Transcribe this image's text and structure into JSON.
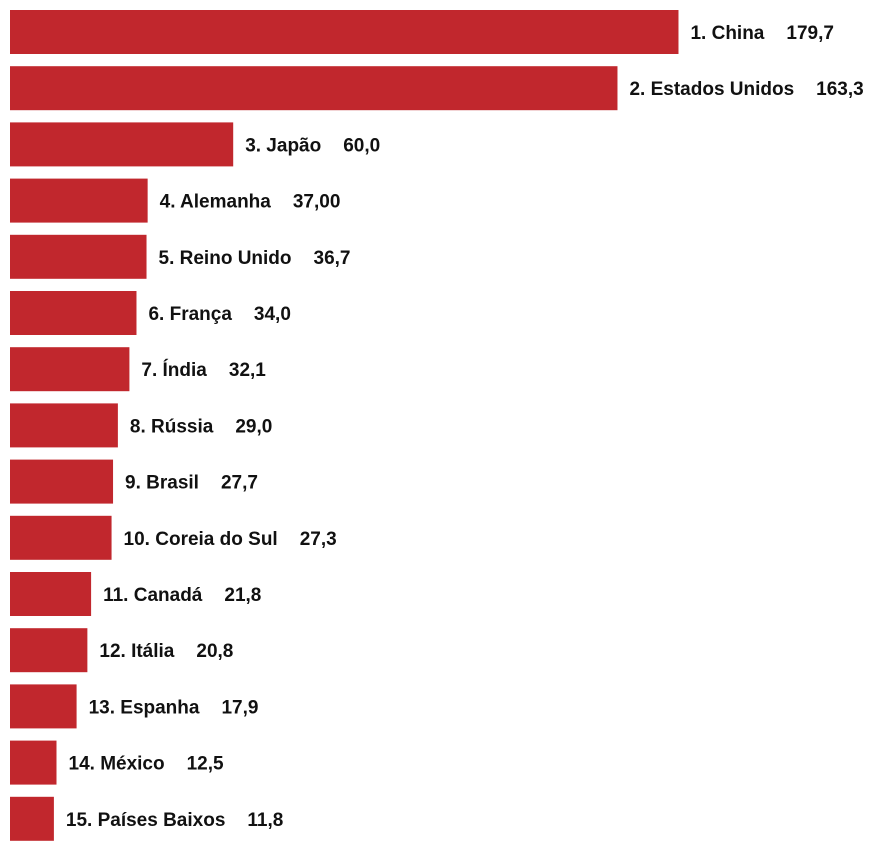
{
  "colors": {
    "bar": "#c1272d",
    "text": "#111111",
    "background": "#ffffff"
  },
  "chart_data": {
    "type": "bar",
    "orientation": "horizontal",
    "categories": [
      "1. China",
      "2. Estados Unidos",
      "3. Japão",
      "4. Alemanha",
      "5. Reino Unido",
      "6. França",
      "7. Índia",
      "8. Rússia",
      "9. Brasil",
      "10. Coreia do Sul",
      "11. Canadá",
      "12. Itália",
      "13. Espanha",
      "14. México",
      "15. Países Baixos"
    ],
    "values": [
      179.7,
      163.3,
      60.0,
      37.0,
      36.7,
      34.0,
      32.1,
      29.0,
      27.7,
      27.3,
      21.8,
      20.8,
      17.9,
      12.5,
      11.8
    ],
    "value_labels": [
      "179,7",
      "163,3",
      "60,0",
      "37,00",
      "36,7",
      "34,0",
      "32,1",
      "29,0",
      "27,7",
      "27,3",
      "21,8",
      "20,8",
      "17,9",
      "12,5",
      "11,8"
    ],
    "title": "",
    "xlabel": "",
    "ylabel": "",
    "grid": false,
    "legend": "none"
  }
}
